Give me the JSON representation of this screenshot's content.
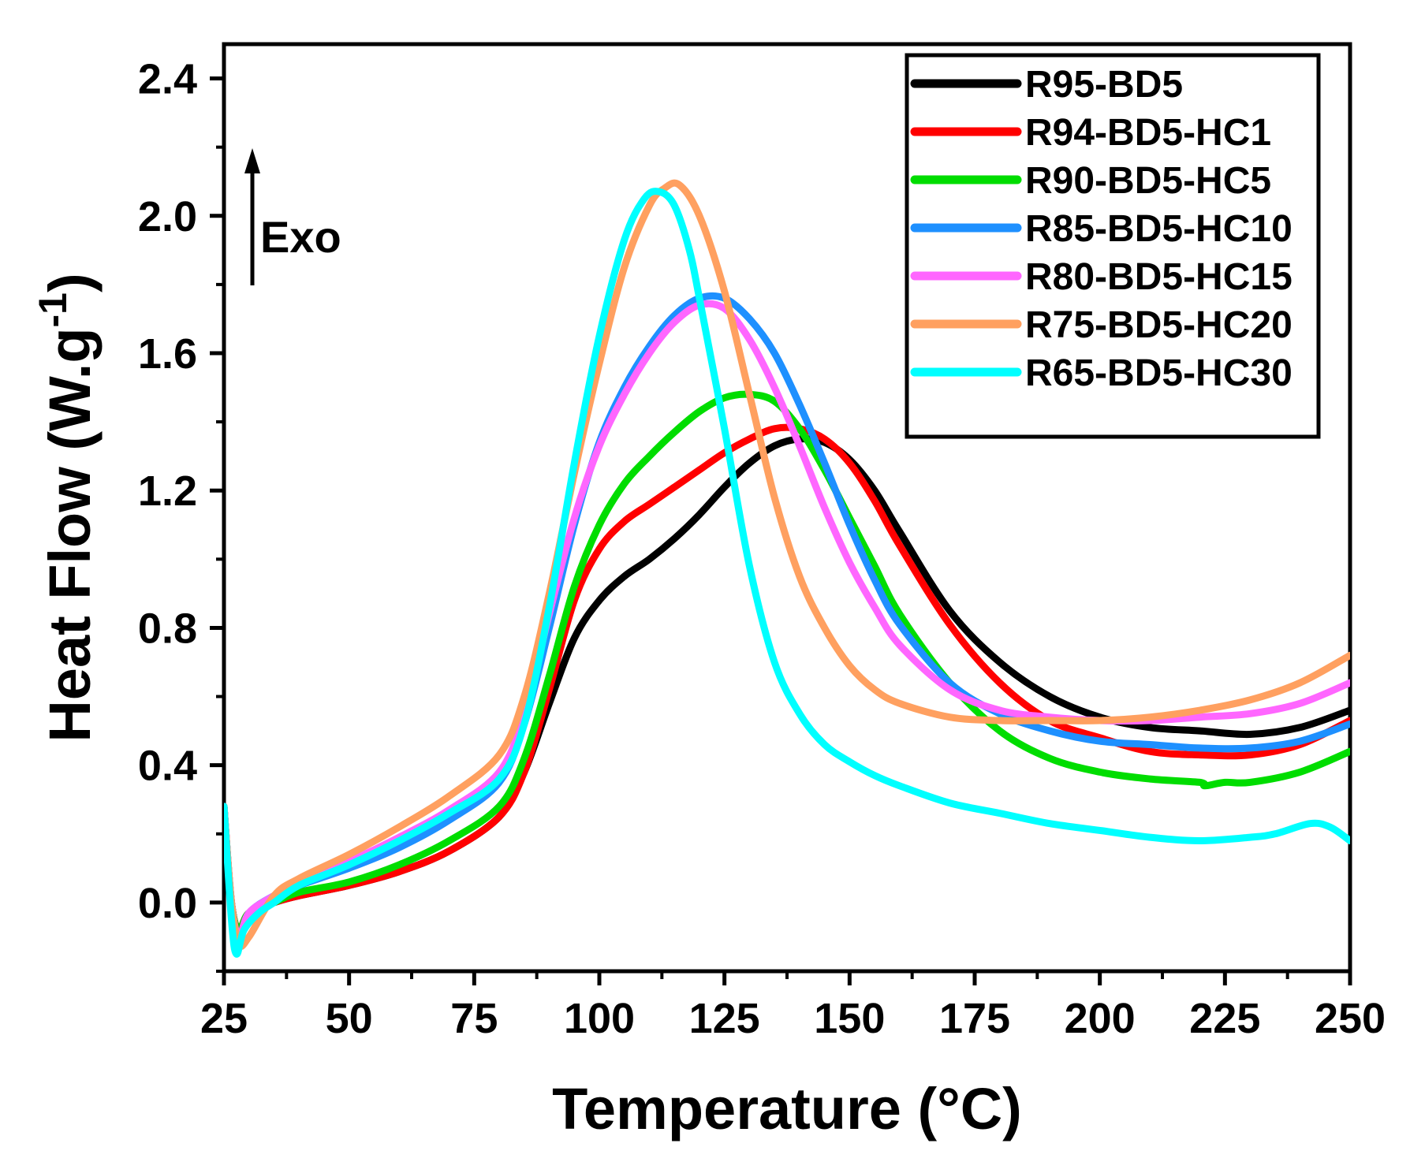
{
  "chart_data": {
    "type": "line",
    "xlabel": "Temperature (°C)",
    "ylabel_main": "Heat Flow (W.g",
    "ylabel_sup": "-1",
    "ylabel_close": ")",
    "xlim": [
      25,
      250
    ],
    "ylim": [
      -0.2,
      2.5
    ],
    "xticks": [
      25,
      50,
      75,
      100,
      125,
      150,
      175,
      200,
      225,
      250
    ],
    "xtick_labels": [
      "25",
      "50",
      "75",
      "100",
      "125",
      "150",
      "175",
      "200",
      "225",
      "250"
    ],
    "yticks": [
      0.0,
      0.4,
      0.8,
      1.2,
      1.6,
      2.0,
      2.4
    ],
    "ytick_labels": [
      "0.0",
      "0.4",
      "0.8",
      "1.2",
      "1.6",
      "2.0",
      "2.4"
    ],
    "grid": false,
    "legend_position": "top-right",
    "annotation": {
      "text": "Exo",
      "arrow": "up"
    },
    "series": [
      {
        "name": "R95-BD5",
        "color": "#000000",
        "x": [
          25,
          26.5,
          28,
          30,
          35,
          40,
          50,
          60,
          70,
          80,
          85,
          90,
          95,
          100,
          105,
          110,
          115,
          120,
          125,
          130,
          135,
          140,
          145,
          150,
          155,
          160,
          170,
          180,
          190,
          200,
          210,
          220,
          230,
          240,
          250
        ],
        "y": [
          0.28,
          0.0,
          -0.08,
          -0.03,
          0.0,
          0.02,
          0.05,
          0.09,
          0.15,
          0.25,
          0.38,
          0.58,
          0.77,
          0.88,
          0.95,
          1.0,
          1.06,
          1.13,
          1.21,
          1.28,
          1.33,
          1.35,
          1.34,
          1.29,
          1.2,
          1.08,
          0.85,
          0.7,
          0.6,
          0.54,
          0.51,
          0.5,
          0.49,
          0.51,
          0.56
        ]
      },
      {
        "name": "R94-BD5-HC1",
        "color": "#ff0000",
        "x": [
          25,
          26.5,
          28,
          30,
          35,
          40,
          50,
          60,
          70,
          80,
          85,
          90,
          95,
          100,
          105,
          110,
          115,
          120,
          125,
          130,
          135,
          140,
          145,
          150,
          155,
          160,
          170,
          180,
          190,
          200,
          210,
          220,
          230,
          240,
          250
        ],
        "y": [
          0.28,
          0.0,
          -0.08,
          -0.03,
          0.0,
          0.02,
          0.05,
          0.09,
          0.15,
          0.25,
          0.38,
          0.62,
          0.88,
          1.03,
          1.11,
          1.16,
          1.21,
          1.26,
          1.31,
          1.35,
          1.38,
          1.38,
          1.35,
          1.28,
          1.17,
          1.04,
          0.81,
          0.64,
          0.53,
          0.48,
          0.44,
          0.43,
          0.43,
          0.46,
          0.53
        ]
      },
      {
        "name": "R90-BD5-HC5",
        "color": "#00dd00",
        "x": [
          25,
          26.5,
          28,
          30,
          35,
          40,
          50,
          60,
          70,
          80,
          85,
          90,
          95,
          100,
          105,
          110,
          115,
          120,
          125,
          130,
          135,
          140,
          145,
          150,
          155,
          160,
          170,
          180,
          190,
          200,
          210,
          220,
          221,
          225,
          230,
          240,
          250
        ],
        "y": [
          0.28,
          0.0,
          -0.08,
          -0.03,
          0.0,
          0.03,
          0.06,
          0.11,
          0.18,
          0.28,
          0.42,
          0.66,
          0.92,
          1.1,
          1.22,
          1.3,
          1.37,
          1.43,
          1.47,
          1.48,
          1.46,
          1.38,
          1.26,
          1.12,
          0.98,
          0.84,
          0.64,
          0.5,
          0.42,
          0.38,
          0.36,
          0.35,
          0.34,
          0.35,
          0.35,
          0.38,
          0.44
        ]
      },
      {
        "name": "R85-BD5-HC10",
        "color": "#1e90ff",
        "x": [
          25,
          26.5,
          28,
          30,
          35,
          40,
          50,
          60,
          70,
          80,
          85,
          90,
          95,
          100,
          105,
          110,
          115,
          120,
          125,
          130,
          135,
          140,
          145,
          150,
          155,
          160,
          170,
          180,
          190,
          200,
          210,
          220,
          230,
          240,
          250
        ],
        "y": [
          0.28,
          0.0,
          -0.1,
          -0.03,
          0.02,
          0.05,
          0.1,
          0.16,
          0.24,
          0.35,
          0.52,
          0.8,
          1.1,
          1.34,
          1.5,
          1.62,
          1.71,
          1.76,
          1.76,
          1.7,
          1.6,
          1.45,
          1.28,
          1.1,
          0.94,
          0.81,
          0.64,
          0.55,
          0.5,
          0.47,
          0.46,
          0.45,
          0.45,
          0.47,
          0.52
        ]
      },
      {
        "name": "R80-BD5-HC15",
        "color": "#ff66ff",
        "x": [
          25,
          26.5,
          28,
          30,
          35,
          40,
          50,
          60,
          70,
          80,
          85,
          90,
          95,
          100,
          105,
          110,
          115,
          120,
          125,
          130,
          135,
          140,
          145,
          150,
          155,
          160,
          170,
          180,
          190,
          200,
          210,
          220,
          230,
          240,
          250
        ],
        "y": [
          0.28,
          0.0,
          -0.1,
          -0.03,
          0.02,
          0.06,
          0.12,
          0.19,
          0.27,
          0.38,
          0.55,
          0.84,
          1.12,
          1.33,
          1.48,
          1.6,
          1.69,
          1.74,
          1.73,
          1.64,
          1.5,
          1.33,
          1.15,
          0.99,
          0.86,
          0.75,
          0.62,
          0.56,
          0.54,
          0.53,
          0.53,
          0.54,
          0.55,
          0.58,
          0.64
        ]
      },
      {
        "name": "R75-BD5-HC20",
        "color": "#ffa060",
        "x": [
          25,
          26.5,
          28,
          30,
          35,
          40,
          50,
          60,
          70,
          80,
          85,
          90,
          95,
          100,
          105,
          110,
          113,
          116,
          120,
          125,
          130,
          135,
          140,
          145,
          150,
          155,
          160,
          170,
          180,
          190,
          200,
          210,
          220,
          230,
          240,
          250
        ],
        "y": [
          0.28,
          0.0,
          -0.12,
          -0.1,
          0.02,
          0.07,
          0.14,
          0.22,
          0.31,
          0.43,
          0.6,
          0.9,
          1.25,
          1.57,
          1.85,
          2.03,
          2.08,
          2.09,
          2.0,
          1.78,
          1.48,
          1.18,
          0.95,
          0.8,
          0.69,
          0.62,
          0.58,
          0.54,
          0.53,
          0.53,
          0.53,
          0.54,
          0.56,
          0.59,
          0.64,
          0.72
        ]
      },
      {
        "name": "R65-BD5-HC30",
        "color": "#00ffff",
        "x": [
          25,
          26.5,
          27.5,
          29,
          32,
          35,
          40,
          50,
          60,
          70,
          80,
          85,
          90,
          95,
          100,
          105,
          109,
          112,
          115,
          118,
          120,
          125,
          130,
          135,
          140,
          145,
          150,
          155,
          160,
          170,
          180,
          190,
          200,
          210,
          220,
          230,
          235,
          242,
          246,
          250
        ],
        "y": [
          0.28,
          -0.05,
          -0.15,
          -0.08,
          -0.03,
          0.0,
          0.05,
          0.11,
          0.18,
          0.26,
          0.36,
          0.52,
          0.86,
          1.28,
          1.65,
          1.93,
          2.05,
          2.07,
          2.03,
          1.9,
          1.76,
          1.38,
          0.98,
          0.7,
          0.55,
          0.46,
          0.41,
          0.37,
          0.34,
          0.29,
          0.26,
          0.23,
          0.21,
          0.19,
          0.18,
          0.19,
          0.2,
          0.23,
          0.22,
          0.18
        ]
      }
    ]
  }
}
